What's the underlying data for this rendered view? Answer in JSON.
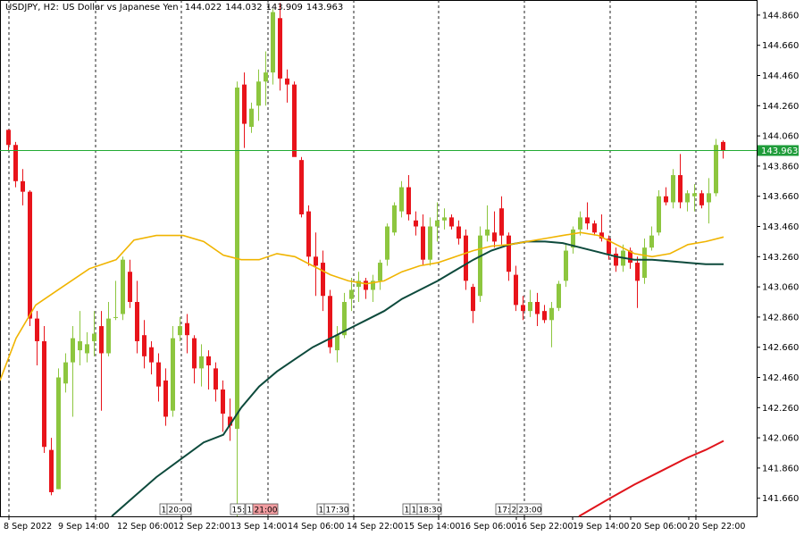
{
  "header": {
    "symbol": "USDJPY, H2:",
    "name": "US Dollar vs Japanese Yen",
    "open": "144.022",
    "high": "144.032",
    "low": "143.909",
    "close": "143.963"
  },
  "colors": {
    "bull": "#8dc63f",
    "bear": "#e8141b",
    "ma_fast": "#f0b400",
    "ma_mid": "#0d4a3c",
    "ma_slow": "#e0141b",
    "price_line": "#22aa33",
    "price_tag_bg": "#1f9c3a",
    "marker_red": "#f29ca0"
  },
  "chart_data": {
    "type": "candlestick",
    "y_ticks": [
      "144.860",
      "144.660",
      "144.460",
      "144.260",
      "144.060",
      "143.860",
      "143.660",
      "143.460",
      "143.260",
      "143.060",
      "142.860",
      "142.660",
      "142.460",
      "142.260",
      "142.060",
      "141.860",
      "141.660"
    ],
    "ylim": [
      141.54,
      144.96
    ],
    "x_ticks": [
      "8 Sep 2022",
      "9 Sep 14:00",
      "12 Sep 06:00",
      "12 Sep 22:00",
      "13 Sep 14:00",
      "14 Sep 06:00",
      "14 Sep 22:00",
      "15 Sep 14:00",
      "16 Sep 06:00",
      "16 Sep 22:00",
      "19 Sep 14:00",
      "20 Sep 06:00",
      "20 Sep 22:00"
    ],
    "current_price": "143.963",
    "markers": [
      {
        "text": "1",
        "red": false
      },
      {
        "text": "20:00",
        "red": false
      },
      {
        "text": "15:",
        "red": false
      },
      {
        "text": "1",
        "red": false
      },
      {
        "text": "21:00",
        "red": true
      },
      {
        "text": "1",
        "red": false
      },
      {
        "text": "17:30",
        "red": false
      },
      {
        "text": "1",
        "red": false
      },
      {
        "text": "1",
        "red": false
      },
      {
        "text": "18:30",
        "red": false
      },
      {
        "text": "17:",
        "red": false
      },
      {
        "text": "2",
        "red": false
      },
      {
        "text": "23:00",
        "red": false
      }
    ],
    "candles": [
      [
        144.1,
        144.1,
        143.96,
        144.0
      ],
      [
        144.0,
        144.02,
        143.72,
        143.76
      ],
      [
        143.76,
        143.84,
        143.6,
        143.69
      ],
      [
        143.69,
        143.7,
        142.8,
        142.85
      ],
      [
        142.85,
        142.9,
        142.54,
        142.7
      ],
      [
        142.7,
        142.8,
        141.96,
        142.0
      ],
      [
        141.98,
        142.06,
        141.68,
        141.7
      ],
      [
        141.72,
        142.52,
        141.72,
        142.46
      ],
      [
        142.42,
        142.62,
        142.36,
        142.56
      ],
      [
        142.56,
        142.8,
        142.2,
        142.72
      ],
      [
        142.64,
        142.9,
        142.54,
        142.7
      ],
      [
        142.62,
        142.76,
        142.56,
        142.68
      ],
      [
        142.7,
        142.9,
        142.6,
        142.75
      ],
      [
        142.8,
        142.9,
        142.24,
        142.62
      ],
      [
        142.62,
        142.96,
        142.6,
        142.85
      ],
      [
        142.86,
        143.1,
        142.84,
        142.86
      ],
      [
        142.88,
        143.26,
        142.84,
        143.24
      ],
      [
        143.16,
        143.24,
        142.92,
        142.96
      ],
      [
        142.96,
        143.1,
        142.62,
        142.7
      ],
      [
        142.74,
        142.84,
        142.52,
        142.6
      ],
      [
        142.66,
        142.7,
        142.48,
        142.56
      ],
      [
        142.56,
        142.62,
        142.3,
        142.4
      ],
      [
        142.44,
        142.52,
        142.14,
        142.2
      ],
      [
        142.24,
        142.8,
        142.2,
        142.72
      ],
      [
        142.74,
        142.86,
        142.7,
        142.8
      ],
      [
        142.82,
        142.88,
        142.62,
        142.74
      ],
      [
        142.72,
        142.74,
        142.42,
        142.52
      ],
      [
        142.52,
        142.68,
        142.4,
        142.6
      ],
      [
        142.6,
        142.64,
        142.38,
        142.54
      ],
      [
        142.52,
        142.56,
        142.3,
        142.38
      ],
      [
        142.38,
        142.44,
        142.1,
        142.22
      ],
      [
        142.2,
        142.32,
        142.04,
        142.14
      ],
      [
        142.12,
        144.42,
        141.54,
        144.38
      ],
      [
        144.4,
        144.48,
        143.98,
        144.14
      ],
      [
        144.12,
        144.28,
        144.08,
        144.24
      ],
      [
        144.26,
        144.5,
        144.16,
        144.42
      ],
      [
        144.42,
        144.62,
        144.26,
        144.48
      ],
      [
        144.48,
        144.9,
        144.4,
        144.88
      ],
      [
        144.84,
        144.94,
        144.36,
        144.44
      ],
      [
        144.44,
        144.5,
        144.28,
        144.4
      ],
      [
        144.4,
        144.42,
        143.94,
        143.92
      ],
      [
        143.9,
        143.92,
        143.52,
        143.54
      ],
      [
        143.56,
        143.6,
        143.2,
        143.26
      ],
      [
        143.26,
        143.42,
        143.0,
        143.2
      ],
      [
        143.22,
        143.3,
        142.9,
        143.0
      ],
      [
        143.0,
        143.04,
        142.62,
        142.66
      ],
      [
        142.64,
        142.8,
        142.56,
        142.74
      ],
      [
        142.74,
        143.02,
        142.72,
        142.96
      ],
      [
        142.98,
        143.12,
        142.9,
        143.04
      ],
      [
        143.06,
        143.16,
        142.96,
        143.1
      ],
      [
        143.1,
        143.12,
        142.98,
        143.04
      ],
      [
        143.04,
        143.14,
        142.96,
        143.1
      ],
      [
        143.1,
        143.24,
        143.04,
        143.22
      ],
      [
        143.24,
        143.48,
        143.2,
        143.46
      ],
      [
        143.42,
        143.62,
        143.4,
        143.6
      ],
      [
        143.56,
        143.76,
        143.52,
        143.72
      ],
      [
        143.72,
        143.8,
        143.5,
        143.54
      ],
      [
        143.5,
        143.56,
        143.4,
        143.46
      ],
      [
        143.46,
        143.54,
        143.2,
        143.24
      ],
      [
        143.24,
        143.52,
        143.2,
        143.46
      ],
      [
        143.46,
        143.62,
        143.36,
        143.5
      ],
      [
        143.5,
        143.58,
        143.44,
        143.52
      ],
      [
        143.52,
        143.54,
        143.44,
        143.46
      ],
      [
        143.46,
        143.5,
        143.34,
        143.38
      ],
      [
        143.4,
        143.44,
        143.04,
        143.1
      ],
      [
        143.06,
        143.08,
        142.82,
        142.9
      ],
      [
        143.0,
        143.46,
        142.96,
        143.4
      ],
      [
        143.4,
        143.6,
        143.36,
        143.44
      ],
      [
        143.42,
        143.56,
        143.32,
        143.36
      ],
      [
        143.58,
        143.66,
        143.34,
        143.4
      ],
      [
        143.4,
        143.42,
        143.1,
        143.16
      ],
      [
        143.14,
        143.2,
        142.9,
        142.94
      ],
      [
        142.94,
        143.0,
        142.84,
        142.9
      ],
      [
        142.9,
        143.04,
        142.86,
        142.96
      ],
      [
        142.96,
        143.02,
        142.8,
        142.88
      ],
      [
        142.9,
        142.94,
        142.82,
        142.84
      ],
      [
        142.84,
        142.96,
        142.66,
        142.92
      ],
      [
        142.92,
        143.1,
        142.9,
        143.08
      ],
      [
        143.1,
        143.34,
        143.06,
        143.3
      ],
      [
        143.32,
        143.46,
        143.28,
        143.44
      ],
      [
        143.44,
        143.56,
        143.4,
        143.52
      ],
      [
        143.52,
        143.62,
        143.44,
        143.48
      ],
      [
        143.48,
        143.5,
        143.4,
        143.42
      ],
      [
        143.42,
        143.54,
        143.36,
        143.38
      ],
      [
        143.38,
        143.4,
        143.24,
        143.28
      ],
      [
        143.28,
        143.32,
        143.16,
        143.2
      ],
      [
        143.2,
        143.34,
        143.16,
        143.3
      ],
      [
        143.3,
        143.32,
        143.18,
        143.22
      ],
      [
        143.22,
        143.26,
        142.92,
        143.1
      ],
      [
        143.12,
        143.38,
        143.08,
        143.32
      ],
      [
        143.32,
        143.46,
        143.3,
        143.4
      ],
      [
        143.42,
        143.7,
        143.4,
        143.66
      ],
      [
        143.66,
        143.72,
        143.6,
        143.62
      ],
      [
        143.62,
        143.84,
        143.58,
        143.8
      ],
      [
        143.8,
        143.94,
        143.58,
        143.62
      ],
      [
        143.62,
        143.7,
        143.56,
        143.68
      ],
      [
        143.66,
        143.74,
        143.56,
        143.68
      ],
      [
        143.68,
        143.7,
        143.58,
        143.6
      ],
      [
        143.62,
        143.78,
        143.48,
        143.68
      ],
      [
        143.68,
        144.04,
        143.66,
        144.0
      ],
      [
        144.02,
        144.03,
        143.91,
        143.96
      ]
    ],
    "ma_fast": [
      [
        0,
        142.44
      ],
      [
        18,
        142.72
      ],
      [
        40,
        142.94
      ],
      [
        70,
        143.06
      ],
      [
        100,
        143.18
      ],
      [
        130,
        143.24
      ],
      [
        150,
        143.37
      ],
      [
        175,
        143.4
      ],
      [
        205,
        143.4
      ],
      [
        228,
        143.36
      ],
      [
        250,
        143.27
      ],
      [
        270,
        143.24
      ],
      [
        290,
        143.24
      ],
      [
        310,
        143.28
      ],
      [
        330,
        143.26
      ],
      [
        350,
        143.2
      ],
      [
        370,
        143.14
      ],
      [
        390,
        143.1
      ],
      [
        410,
        143.08
      ],
      [
        430,
        143.1
      ],
      [
        450,
        143.16
      ],
      [
        470,
        143.2
      ],
      [
        490,
        143.22
      ],
      [
        510,
        143.26
      ],
      [
        530,
        143.3
      ],
      [
        550,
        143.33
      ],
      [
        570,
        143.34
      ],
      [
        590,
        143.36
      ],
      [
        610,
        143.38
      ],
      [
        630,
        143.4
      ],
      [
        650,
        143.42
      ],
      [
        670,
        143.4
      ],
      [
        690,
        143.34
      ],
      [
        710,
        143.28
      ],
      [
        730,
        143.26
      ],
      [
        750,
        143.28
      ],
      [
        770,
        143.34
      ],
      [
        790,
        143.36
      ],
      [
        810,
        143.39
      ]
    ],
    "ma_mid": [
      [
        125,
        141.54
      ],
      [
        150,
        141.67
      ],
      [
        175,
        141.8
      ],
      [
        205,
        141.93
      ],
      [
        228,
        142.03
      ],
      [
        250,
        142.08
      ],
      [
        270,
        142.26
      ],
      [
        290,
        142.4
      ],
      [
        310,
        142.5
      ],
      [
        330,
        142.58
      ],
      [
        350,
        142.66
      ],
      [
        370,
        142.72
      ],
      [
        390,
        142.78
      ],
      [
        410,
        142.84
      ],
      [
        430,
        142.9
      ],
      [
        450,
        142.98
      ],
      [
        470,
        143.04
      ],
      [
        490,
        143.1
      ],
      [
        510,
        143.17
      ],
      [
        530,
        143.24
      ],
      [
        550,
        143.3
      ],
      [
        570,
        143.34
      ],
      [
        590,
        143.36
      ],
      [
        610,
        143.36
      ],
      [
        630,
        143.35
      ],
      [
        650,
        143.32
      ],
      [
        670,
        143.29
      ],
      [
        690,
        143.26
      ],
      [
        710,
        143.24
      ],
      [
        730,
        143.24
      ],
      [
        750,
        143.23
      ],
      [
        770,
        143.22
      ],
      [
        790,
        143.21
      ],
      [
        810,
        143.21
      ]
    ],
    "ma_slow": [
      [
        648,
        141.54
      ],
      [
        680,
        141.65
      ],
      [
        710,
        141.75
      ],
      [
        740,
        141.84
      ],
      [
        770,
        141.93
      ],
      [
        790,
        141.98
      ],
      [
        810,
        142.04
      ]
    ]
  }
}
